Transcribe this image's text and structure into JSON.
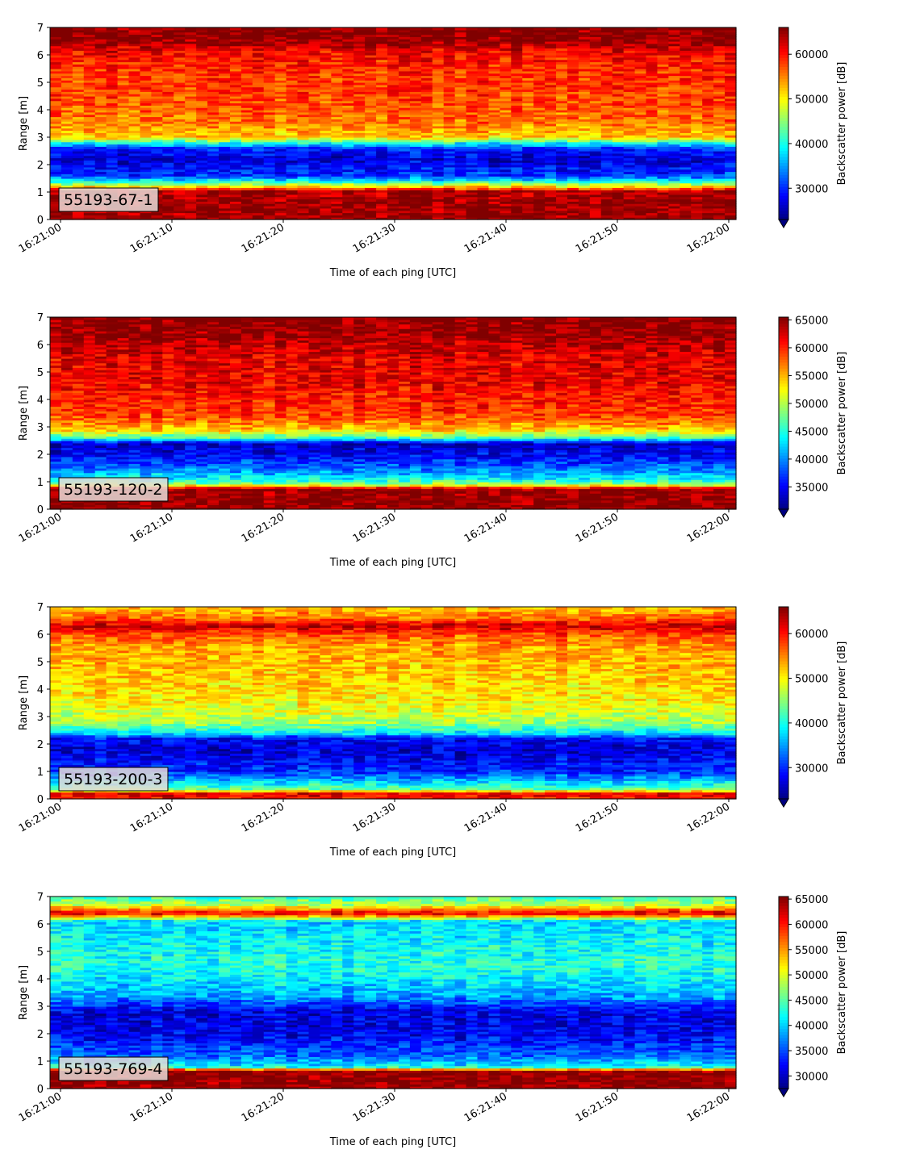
{
  "chart_data": [
    {
      "type": "heatmap",
      "label": "55193-67-1",
      "xlabel": "Time of each ping [UTC]",
      "ylabel": "Range [m]",
      "colorbar_label": "Backscatter power [dB]",
      "colormap": "jet",
      "x_ticks": [
        "16:21:00",
        "16:21:10",
        "16:21:20",
        "16:21:30",
        "16:21:40",
        "16:21:50",
        "16:22:00"
      ],
      "y_ticks": [
        0,
        1,
        2,
        3,
        4,
        5,
        6,
        7
      ],
      "ylim": [
        0,
        7
      ],
      "clim": [
        23000,
        66000
      ],
      "colorbar_ticks": [
        30000,
        40000,
        50000,
        60000
      ],
      "profile": [
        {
          "range": 0.1,
          "value": 65000
        },
        {
          "range": 0.6,
          "value": 65000
        },
        {
          "range": 1.05,
          "value": 64000
        },
        {
          "range": 1.2,
          "value": 52000
        },
        {
          "range": 1.4,
          "value": 40000
        },
        {
          "range": 1.6,
          "value": 31000
        },
        {
          "range": 2.2,
          "value": 26500
        },
        {
          "range": 2.6,
          "value": 30000
        },
        {
          "range": 2.8,
          "value": 40000
        },
        {
          "range": 3.0,
          "value": 52000
        },
        {
          "range": 3.6,
          "value": 56000
        },
        {
          "range": 4.5,
          "value": 58000
        },
        {
          "range": 5.5,
          "value": 59000
        },
        {
          "range": 6.1,
          "value": 61000
        },
        {
          "range": 6.5,
          "value": 65000
        },
        {
          "range": 7.0,
          "value": 66000
        }
      ]
    },
    {
      "type": "heatmap",
      "label": "55193-120-2",
      "xlabel": "Time of each ping [UTC]",
      "ylabel": "Range [m]",
      "colorbar_label": "Backscatter power [dB]",
      "colormap": "jet",
      "x_ticks": [
        "16:21:00",
        "16:21:10",
        "16:21:20",
        "16:21:30",
        "16:21:40",
        "16:21:50",
        "16:22:00"
      ],
      "y_ticks": [
        0,
        1,
        2,
        3,
        4,
        5,
        6,
        7
      ],
      "ylim": [
        0,
        7
      ],
      "clim": [
        31000,
        65500
      ],
      "colorbar_ticks": [
        35000,
        40000,
        45000,
        50000,
        55000,
        60000,
        65000
      ],
      "profile": [
        {
          "range": 0.1,
          "value": 65000
        },
        {
          "range": 0.75,
          "value": 65000
        },
        {
          "range": 0.9,
          "value": 50000
        },
        {
          "range": 1.1,
          "value": 44000
        },
        {
          "range": 1.5,
          "value": 39000
        },
        {
          "range": 2.0,
          "value": 35000
        },
        {
          "range": 2.4,
          "value": 33000
        },
        {
          "range": 2.6,
          "value": 46000
        },
        {
          "range": 2.9,
          "value": 54000
        },
        {
          "range": 3.4,
          "value": 59000
        },
        {
          "range": 4.5,
          "value": 61500
        },
        {
          "range": 5.5,
          "value": 62000
        },
        {
          "range": 6.3,
          "value": 64500
        },
        {
          "range": 7.0,
          "value": 65500
        }
      ]
    },
    {
      "type": "heatmap",
      "label": "55193-200-3",
      "xlabel": "Time of each ping [UTC]",
      "ylabel": "Range [m]",
      "colorbar_label": "Backscatter power [dB]",
      "colormap": "jet",
      "x_ticks": [
        "16:21:00",
        "16:21:10",
        "16:21:20",
        "16:21:30",
        "16:21:40",
        "16:21:50",
        "16:22:00"
      ],
      "y_ticks": [
        0,
        1,
        2,
        3,
        4,
        5,
        6,
        7
      ],
      "ylim": [
        0,
        7
      ],
      "clim": [
        23000,
        66000
      ],
      "colorbar_ticks": [
        30000,
        40000,
        50000,
        60000
      ],
      "profile": [
        {
          "range": 0.05,
          "value": 60000
        },
        {
          "range": 0.2,
          "value": 62000
        },
        {
          "range": 0.35,
          "value": 44000
        },
        {
          "range": 0.6,
          "value": 38000
        },
        {
          "range": 1.0,
          "value": 30000
        },
        {
          "range": 1.8,
          "value": 26500
        },
        {
          "range": 2.2,
          "value": 28000
        },
        {
          "range": 2.4,
          "value": 38000
        },
        {
          "range": 2.8,
          "value": 46000
        },
        {
          "range": 3.5,
          "value": 50000
        },
        {
          "range": 4.5,
          "value": 52000
        },
        {
          "range": 5.5,
          "value": 53500
        },
        {
          "range": 6.0,
          "value": 57000
        },
        {
          "range": 6.3,
          "value": 63000
        },
        {
          "range": 6.6,
          "value": 56000
        },
        {
          "range": 7.0,
          "value": 52000
        }
      ]
    },
    {
      "type": "heatmap",
      "label": "55193-769-4",
      "xlabel": "Time of each ping [UTC]",
      "ylabel": "Range [m]",
      "colorbar_label": "Backscatter power [dB]",
      "colormap": "jet",
      "x_ticks": [
        "16:21:00",
        "16:21:10",
        "16:21:20",
        "16:21:30",
        "16:21:40",
        "16:21:50",
        "16:22:00"
      ],
      "y_ticks": [
        0,
        1,
        2,
        3,
        4,
        5,
        6,
        7
      ],
      "ylim": [
        0,
        7
      ],
      "clim": [
        27500,
        65500
      ],
      "colorbar_ticks": [
        30000,
        35000,
        40000,
        45000,
        50000,
        55000,
        60000,
        65000
      ],
      "profile": [
        {
          "range": 0.1,
          "value": 65000
        },
        {
          "range": 0.65,
          "value": 65000
        },
        {
          "range": 0.8,
          "value": 42000
        },
        {
          "range": 1.2,
          "value": 36000
        },
        {
          "range": 2.0,
          "value": 31500
        },
        {
          "range": 2.8,
          "value": 31000
        },
        {
          "range": 3.4,
          "value": 38500
        },
        {
          "range": 4.5,
          "value": 43000
        },
        {
          "range": 5.5,
          "value": 41500
        },
        {
          "range": 6.1,
          "value": 40000
        },
        {
          "range": 6.4,
          "value": 62000
        },
        {
          "range": 6.7,
          "value": 49000
        },
        {
          "range": 7.0,
          "value": 44000
        }
      ]
    }
  ]
}
